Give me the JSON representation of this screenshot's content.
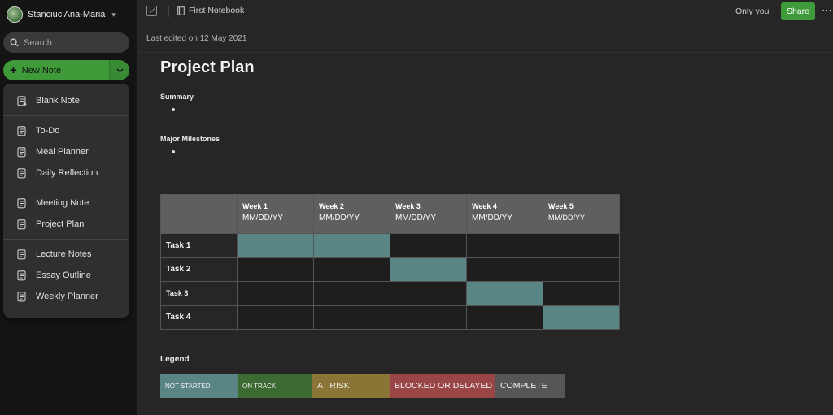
{
  "account": {
    "name": "Stanciuc Ana-Maria"
  },
  "search": {
    "placeholder": "Search"
  },
  "new_note": {
    "label": "New Note",
    "accent": "#3f9b3a"
  },
  "template_menu": {
    "groups": [
      [
        {
          "label": "Blank Note",
          "icon": "note-plus-icon"
        }
      ],
      [
        {
          "label": "To-Do",
          "icon": "note-icon"
        },
        {
          "label": "Meal Planner",
          "icon": "note-icon"
        },
        {
          "label": "Daily Reflection",
          "icon": "note-icon"
        }
      ],
      [
        {
          "label": "Meeting Note",
          "icon": "note-icon"
        },
        {
          "label": "Project Plan",
          "icon": "note-icon"
        }
      ],
      [
        {
          "label": "Lecture Notes",
          "icon": "note-icon"
        },
        {
          "label": "Essay Outline",
          "icon": "note-icon"
        },
        {
          "label": "Weekly Planner",
          "icon": "note-icon"
        }
      ]
    ]
  },
  "topbar": {
    "notebook": "First Notebook",
    "visibility": "Only you",
    "share_label": "Share",
    "more_label": "⋯"
  },
  "meta": {
    "last_edited": "Last edited on 12 May 2021"
  },
  "document": {
    "title": "Project Plan",
    "summary_heading": "Summary",
    "milestones_heading": "Major Milestones",
    "table": {
      "weeks": [
        {
          "label": "Week 1",
          "date": "MM/DD/YY"
        },
        {
          "label": "Week 2",
          "date": "MM/DD/YY"
        },
        {
          "label": "Week 3",
          "date": "MM/DD/YY"
        },
        {
          "label": "Week 4",
          "date": "MM/DD/YY"
        },
        {
          "label": "Week 5",
          "date": "MM/DD/YY"
        }
      ],
      "tasks": [
        {
          "label": "Task 1",
          "active_weeks": [
            1,
            2
          ]
        },
        {
          "label": "Task 2",
          "active_weeks": [
            3
          ]
        },
        {
          "label": "Task 3",
          "active_weeks": [
            4
          ]
        },
        {
          "label": "Task 4",
          "active_weeks": [
            5
          ]
        }
      ],
      "active_color": "#5a8585"
    },
    "legend_heading": "Legend",
    "legend": [
      {
        "label": "NOT STARTED",
        "color": "#5a8585"
      },
      {
        "label": "ON TRACK",
        "color": "#3c6a33"
      },
      {
        "label": "AT RISK",
        "color": "#8a7436"
      },
      {
        "label": "BLOCKED OR DELAYED",
        "color": "#9b4646"
      },
      {
        "label": "COMPLETE",
        "color": "#565656"
      }
    ]
  }
}
